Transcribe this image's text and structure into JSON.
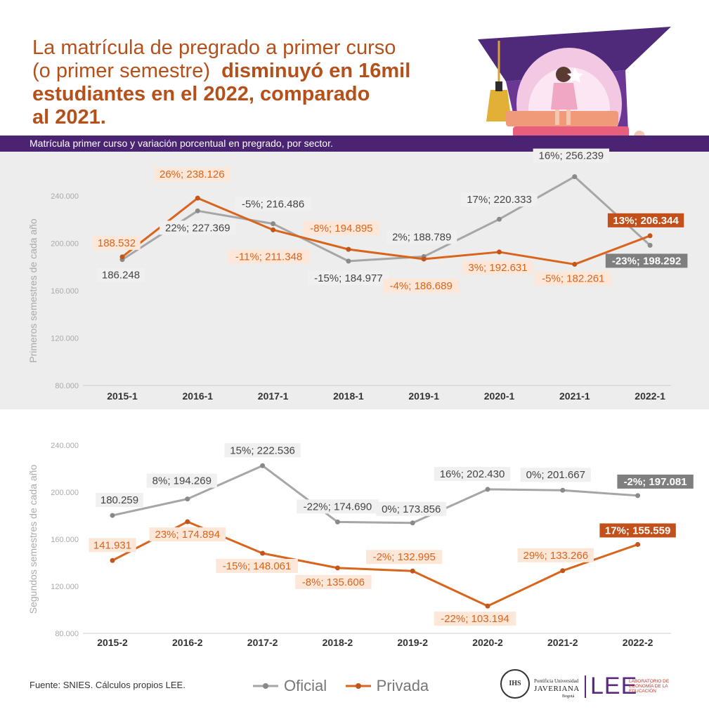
{
  "headline": {
    "line1": "La matrícula de pregrado a primer curso",
    "line2_normal": "(o primer semestre)",
    "line2_bold": "disminuyó en 16mil",
    "line3": "estudiantes en el 2022, comparado",
    "line4": "al 2021."
  },
  "banner": "Matrícula primer curso y variación porcentual en pregrado, por sector.",
  "colors": {
    "oficial": "#a6a6a6",
    "privada": "#d9641c",
    "banner": "#4a2372",
    "headline": "#b5501a"
  },
  "footer": {
    "source": "Fuente: SNIES. Cálculos propios LEE.",
    "legend_oficial": "Oficial",
    "legend_privada": "Privada",
    "logo_univ_line1": "Pontificia Universidad",
    "logo_univ_line2": "JAVERIANA",
    "logo_univ_line3": "Bogotá",
    "logo_seal": "IHS",
    "logo_lee": "LEE",
    "logo_lee_desc": "LABORATORIO DE ECONOMÍA DE LA EDUCACIÓN"
  },
  "chart_data": [
    {
      "type": "line",
      "ylabel": "Primeros semestres de cada año",
      "ylim": [
        80000,
        240000
      ],
      "yticks": [
        "80.000",
        "120.000",
        "160.000",
        "200.000",
        "240.000"
      ],
      "categories": [
        "2015-1",
        "2016-1",
        "2017-1",
        "2018-1",
        "2019-1",
        "2020-1",
        "2021-1",
        "2022-1"
      ],
      "series": [
        {
          "name": "Oficial",
          "values": [
            186248,
            227369,
            216486,
            184977,
            188789,
            220333,
            256239,
            198292
          ],
          "labels": [
            "186.248",
            "22%; 227.369",
            "-5%; 216.486",
            "-15%; 184.977",
            "2%; 188.789",
            "17%; 220.333",
            "16%; 256.239",
            "-23%; 198.292"
          ]
        },
        {
          "name": "Privada",
          "values": [
            188532,
            238126,
            211348,
            194895,
            186689,
            192631,
            182261,
            206344
          ],
          "labels": [
            "188.532",
            "26%; 238.126",
            "-11%; 211.348",
            "-8%; 194.895",
            "-4%; 186.689",
            "3%; 192.631",
            "-5%; 182.261",
            "13%; 206.344"
          ]
        }
      ]
    },
    {
      "type": "line",
      "ylabel": "Segundos semestres de cada año",
      "ylim": [
        80000,
        240000
      ],
      "yticks": [
        "80.000",
        "120.000",
        "160.000",
        "200.000",
        "240.000"
      ],
      "categories": [
        "2015-2",
        "2016-2",
        "2017-2",
        "2018-2",
        "2019-2",
        "2020-2",
        "2021-2",
        "2022-2"
      ],
      "series": [
        {
          "name": "Oficial",
          "values": [
            180259,
            194269,
            222536,
            174690,
            173856,
            202430,
            201667,
            197081
          ],
          "labels": [
            "180.259",
            "8%; 194.269",
            "15%; 222.536",
            "-22%; 174.690",
            "0%; 173.856",
            "16%; 202.430",
            "0%; 201.667",
            "-2%; 197.081"
          ]
        },
        {
          "name": "Privada",
          "values": [
            141931,
            174894,
            148061,
            135606,
            132995,
            103194,
            133266,
            155559
          ],
          "labels": [
            "141.931",
            "23%; 174.894",
            "-15%; 148.061",
            "-8%; 135.606",
            "-2%; 132.995",
            "-22%; 103.194",
            "29%; 133.266",
            "17%; 155.559"
          ]
        }
      ]
    }
  ]
}
